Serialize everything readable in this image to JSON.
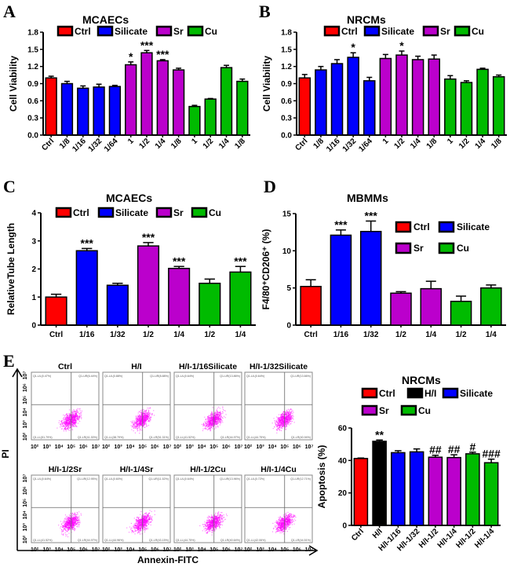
{
  "colors": {
    "Ctrl": "#ff0000",
    "H/I": "#000000",
    "Silicate": "#0000ff",
    "Sr": "#bb00cc",
    "Cu": "#00bb00"
  },
  "chart_data": [
    {
      "id": "A",
      "panel": "A",
      "type": "bar",
      "title": "MCAECs",
      "ylabel": "Cell Viability",
      "ylim": [
        0,
        1.8
      ],
      "yticks": [
        "0.0",
        "0.3",
        "0.6",
        "0.9",
        "1.2",
        "1.5",
        "1.8"
      ],
      "ytick_values": [
        0,
        0.3,
        0.6,
        0.9,
        1.2,
        1.5,
        1.8
      ],
      "legend": [
        "Ctrl",
        "Silicate",
        "Sr",
        "Cu"
      ],
      "legend_position": "top",
      "categories": [
        "Ctrl",
        "1/8",
        "1/16",
        "1/32",
        "1/64",
        "1",
        "1/2",
        "1/4",
        "1/8",
        "1",
        "1/2",
        "1/4",
        "1/8"
      ],
      "groups": [
        "Ctrl",
        "Silicate",
        "Silicate",
        "Silicate",
        "Silicate",
        "Sr",
        "Sr",
        "Sr",
        "Sr",
        "Cu",
        "Cu",
        "Cu",
        "Cu"
      ],
      "values": [
        1.0,
        0.9,
        0.82,
        0.84,
        0.85,
        1.23,
        1.44,
        1.3,
        1.14,
        0.5,
        0.63,
        1.18,
        0.94
      ],
      "errors": [
        0.03,
        0.04,
        0.04,
        0.05,
        0.02,
        0.05,
        0.04,
        0.02,
        0.03,
        0.02,
        0.01,
        0.04,
        0.04
      ],
      "annotations": [
        "",
        "",
        "",
        "",
        "",
        "*",
        "***",
        "***",
        "",
        "",
        "",
        "",
        ""
      ],
      "x_rotated": true
    },
    {
      "id": "B",
      "panel": "B",
      "type": "bar",
      "title": "NRCMs",
      "ylabel": "Cell Viability",
      "ylim": [
        0,
        1.8
      ],
      "yticks": [
        "0.0",
        "0.3",
        "0.6",
        "0.9",
        "1.2",
        "1.5",
        "1.8"
      ],
      "ytick_values": [
        0,
        0.3,
        0.6,
        0.9,
        1.2,
        1.5,
        1.8
      ],
      "legend": [
        "Ctrl",
        "Silicate",
        "Sr",
        "Cu"
      ],
      "legend_position": "top",
      "categories": [
        "Ctrl",
        "1/8",
        "1/16",
        "1/32",
        "1/64",
        "1",
        "1/2",
        "1/4",
        "1/8",
        "1",
        "1/2",
        "1/4",
        "1/8"
      ],
      "groups": [
        "Ctrl",
        "Silicate",
        "Silicate",
        "Silicate",
        "Silicate",
        "Sr",
        "Sr",
        "Sr",
        "Sr",
        "Cu",
        "Cu",
        "Cu",
        "Cu"
      ],
      "values": [
        1.0,
        1.14,
        1.25,
        1.36,
        0.95,
        1.34,
        1.4,
        1.32,
        1.33,
        0.98,
        0.92,
        1.15,
        1.02
      ],
      "errors": [
        0.06,
        0.06,
        0.07,
        0.08,
        0.06,
        0.07,
        0.07,
        0.06,
        0.07,
        0.06,
        0.03,
        0.02,
        0.03
      ],
      "annotations": [
        "",
        "",
        "",
        "*",
        "",
        "",
        "*",
        "",
        "",
        "",
        "",
        "",
        ""
      ],
      "x_rotated": true
    },
    {
      "id": "C",
      "panel": "C",
      "type": "bar",
      "title": "MCAECs",
      "ylabel": "RelativeTube Length",
      "ylim": [
        0,
        4
      ],
      "yticks": [
        "0",
        "1",
        "2",
        "3",
        "4"
      ],
      "ytick_values": [
        0,
        1,
        2,
        3,
        4
      ],
      "legend": [
        "Ctrl",
        "Silicate",
        "Sr",
        "Cu"
      ],
      "legend_position": "top",
      "categories": [
        "Ctrl",
        "1/16",
        "1/32",
        "1/2",
        "1/4",
        "1/2",
        "1/4"
      ],
      "groups": [
        "Ctrl",
        "Silicate",
        "Silicate",
        "Sr",
        "Sr",
        "Cu",
        "Cu"
      ],
      "values": [
        1.0,
        2.65,
        1.42,
        2.82,
        2.02,
        1.49,
        1.89
      ],
      "errors": [
        0.1,
        0.08,
        0.07,
        0.12,
        0.07,
        0.15,
        0.2
      ],
      "annotations": [
        "",
        "***",
        "",
        "***",
        "***",
        "",
        "***"
      ],
      "x_rotated": false
    },
    {
      "id": "D",
      "panel": "D",
      "type": "bar",
      "title": "MBMMs",
      "ylabel": "F4/80⁺CD206⁺ (%)",
      "ylim": [
        0,
        15
      ],
      "yticks": [
        "0",
        "5",
        "10",
        "15"
      ],
      "ytick_values": [
        0,
        5,
        10,
        15
      ],
      "legend": [
        "Ctrl",
        "Silicate",
        "Sr",
        "Cu"
      ],
      "legend_position": "right",
      "categories": [
        "Ctrl",
        "1/16",
        "1/32",
        "1/2",
        "1/4",
        "1/2",
        "1/4"
      ],
      "groups": [
        "Ctrl",
        "Silicate",
        "Silicate",
        "Sr",
        "Sr",
        "Cu",
        "Cu"
      ],
      "values": [
        5.2,
        12.1,
        12.6,
        4.3,
        4.9,
        3.2,
        5.0
      ],
      "errors": [
        0.9,
        0.7,
        1.4,
        0.2,
        1.0,
        0.7,
        0.4
      ],
      "annotations": [
        "",
        "***",
        "***",
        "",
        "",
        "",
        ""
      ],
      "x_rotated": false
    },
    {
      "id": "E2",
      "panel": "E",
      "type": "bar",
      "title": "NRCMs",
      "ylabel": "Apoptosis (%)",
      "ylim": [
        0,
        60
      ],
      "yticks": [
        "0",
        "20",
        "40",
        "60"
      ],
      "ytick_values": [
        0,
        20,
        40,
        60
      ],
      "legend": [
        "Ctrl",
        "H/I",
        "Silicate",
        "Sr",
        "Cu"
      ],
      "legend_position": "top",
      "categories": [
        "Ctrl",
        "H/I",
        "H/I-1/16",
        "H/I-1/32",
        "H/I-1/2",
        "H/I-1/4",
        "H/I-1/2",
        "H/I-1/4"
      ],
      "groups": [
        "Ctrl",
        "H/I",
        "Silicate",
        "Silicate",
        "Sr",
        "Sr",
        "Cu",
        "Cu"
      ],
      "values": [
        41.2,
        51.8,
        44.8,
        45.3,
        42.0,
        41.8,
        44.1,
        38.6
      ],
      "errors": [
        0.3,
        0.8,
        1.2,
        1.8,
        1.2,
        1.7,
        1.0,
        2.2
      ],
      "annotations": [
        "",
        "**",
        "",
        "",
        "##",
        "##",
        "#",
        "###"
      ],
      "x_rotated": true
    }
  ],
  "flow_cytometry": {
    "panel": "E",
    "xlabel": "Annexin-FITC",
    "ylabel": "PI",
    "axis_ticks": [
      "10²",
      "10³",
      "10⁴",
      "10⁵",
      "10⁶",
      "10⁷"
    ],
    "plots": [
      {
        "title": "Ctrl",
        "UL": "Q1-UL(0.47%)",
        "UR": "Q1-UR(6.44%)",
        "LL": "Q1-LL(51.79%)",
        "LR": "Q1-LR(41.30%)"
      },
      {
        "title": "H/I",
        "UL": "Q1-UL(0.88%)",
        "UR": "Q1-UR(8.88%)",
        "LL": "Q1-LL(38.79%)",
        "LR": "Q1-LR(51.31%)"
      },
      {
        "title": "H/I-1/16Silicate",
        "UL": "Q1-UL(0.64%)",
        "UR": "Q1-UR(13.86%)",
        "LL": "Q1-LL(41.52%)",
        "LR": "Q1-LR(44.97%)"
      },
      {
        "title": "H/I-1/32Silicate",
        "UL": "Q1-UL(0.64%)",
        "UR": "Q1-UR(13.66%)",
        "LL": "Q1-LL(44.75%)",
        "LR": "Q1-LR(40.94%)"
      },
      {
        "title": "H/I-1/2Sr",
        "UL": "Q1-UL(0.64%)",
        "UR": "Q1-UR(12.95%)",
        "LL": "Q1-LL(41.52%)",
        "LR": "Q1-LR(44.97%)"
      },
      {
        "title": "H/I-1/4Sr",
        "UL": "Q1-UL(0.60%)",
        "UR": "Q1-UR(11.52%)",
        "LL": "Q1-LL(44.96%)",
        "LR": "Q1-LR(43.15%)"
      },
      {
        "title": "H/I-1/2Cu",
        "UL": "Q1-UL(0.64%)",
        "UR": "Q1-UR(13.96%)",
        "LL": "Q1-LL(44.75%)",
        "LR": "Q1-LR(40.64%)"
      },
      {
        "title": "H/I-1/4Cu",
        "UL": "Q1-UL(0.72%)",
        "UR": "Q1-UR(12.71%)",
        "LL": "Q1-LL(42.06%)",
        "LR": "Q1-LR(44.51%)"
      }
    ]
  }
}
